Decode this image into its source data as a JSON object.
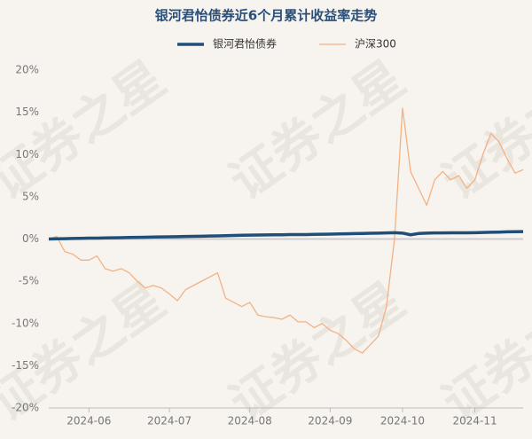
{
  "chart_data": {
    "type": "line",
    "title": "银河君怡债券近6个月累计收益率走势",
    "watermark": "证券之星",
    "categories": [
      null,
      null,
      null,
      null,
      null,
      "2024-06",
      null,
      null,
      null,
      null,
      null,
      null,
      null,
      null,
      null,
      "2024-07",
      null,
      null,
      null,
      null,
      null,
      null,
      null,
      null,
      null,
      "2024-08",
      null,
      null,
      null,
      null,
      null,
      null,
      null,
      null,
      null,
      "2024-09",
      null,
      null,
      null,
      null,
      null,
      null,
      null,
      null,
      "2024-10",
      null,
      null,
      null,
      null,
      null,
      null,
      null,
      null,
      "2024-11",
      null,
      null,
      null,
      null,
      null,
      null
    ],
    "series": [
      {
        "name": "银河君怡债券",
        "color": "#1f4e79",
        "width": 3.5,
        "values": [
          0,
          0.02,
          0.04,
          0.06,
          0.08,
          0.1,
          0.11,
          0.13,
          0.15,
          0.16,
          0.18,
          0.2,
          0.21,
          0.23,
          0.25,
          0.26,
          0.28,
          0.3,
          0.31,
          0.33,
          0.35,
          0.37,
          0.4,
          0.42,
          0.44,
          0.46,
          0.47,
          0.48,
          0.5,
          0.5,
          0.52,
          0.53,
          0.53,
          0.55,
          0.57,
          0.58,
          0.6,
          0.62,
          0.64,
          0.66,
          0.68,
          0.7,
          0.72,
          0.75,
          0.7,
          0.5,
          0.65,
          0.7,
          0.72,
          0.72,
          0.73,
          0.74,
          0.74,
          0.75,
          0.77,
          0.8,
          0.82,
          0.85,
          0.86,
          0.88
        ]
      },
      {
        "name": "沪深300",
        "color": "#f4b183",
        "width": 1.3,
        "values": [
          0,
          0.3,
          -1.5,
          -1.8,
          -2.5,
          -2.5,
          -2.0,
          -3.5,
          -3.8,
          -3.5,
          -4.0,
          -5.0,
          -5.8,
          -5.5,
          -5.8,
          -6.5,
          -7.3,
          -6.0,
          -5.5,
          -5.0,
          -4.5,
          -4.0,
          -7.0,
          -7.5,
          -8.0,
          -7.5,
          -9.0,
          -9.2,
          -9.3,
          -9.5,
          -9.0,
          -9.8,
          -9.8,
          -10.5,
          -10.0,
          -10.8,
          -11.2,
          -12.0,
          -13.0,
          -13.5,
          -12.5,
          -11.5,
          -8.0,
          0,
          15.5,
          8.0,
          6.0,
          4.0,
          7.0,
          8.0,
          7.0,
          7.5,
          6.0,
          7.0,
          10.0,
          12.5,
          11.5,
          9.5,
          7.8,
          8.2
        ]
      }
    ],
    "ylim": [
      -20,
      20
    ],
    "yticks": [
      {
        "value": -20,
        "label": "-20%"
      },
      {
        "value": -15,
        "label": "-15%"
      },
      {
        "value": -10,
        "label": "-10%"
      },
      {
        "value": -5,
        "label": "-5%"
      },
      {
        "value": 0,
        "label": "0%"
      },
      {
        "value": 5,
        "label": "5%"
      },
      {
        "value": 10,
        "label": "10%"
      },
      {
        "value": 15,
        "label": "15%"
      },
      {
        "value": 20,
        "label": "20%"
      }
    ],
    "legend": "top"
  }
}
